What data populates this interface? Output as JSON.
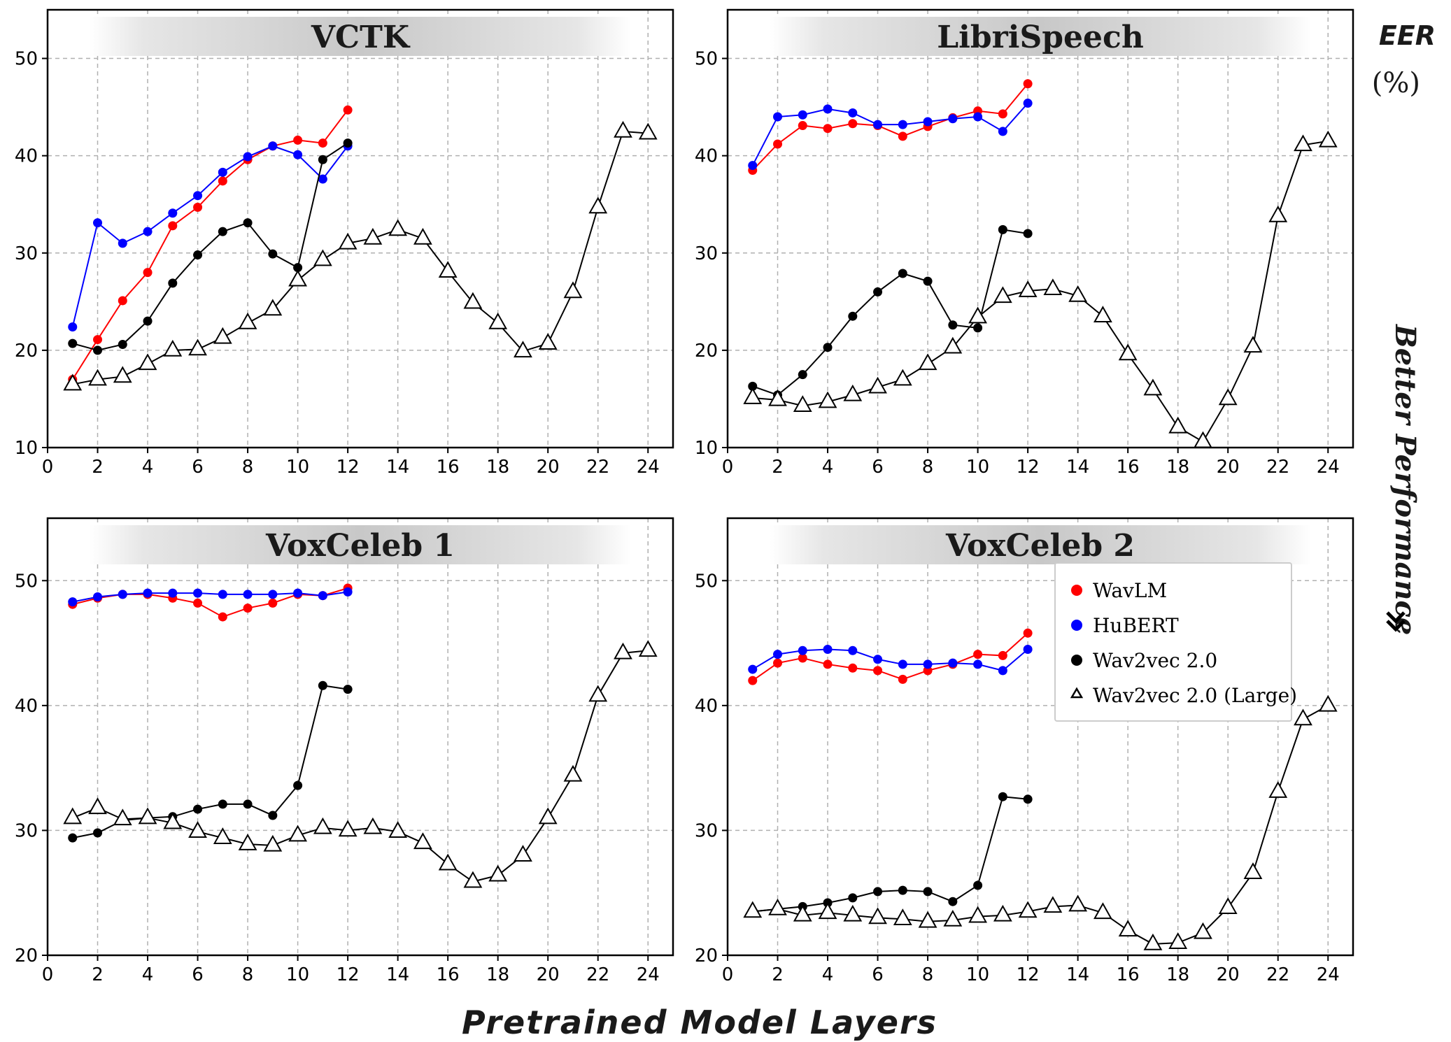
{
  "figure": {
    "xlabel": "Pretrained Model Layers",
    "side_label": "EER",
    "side_unit": "(%)",
    "arrow_label": "Better Performance",
    "arrow_icon": "double-chevron-down-icon"
  },
  "legend": {
    "placement": "inside VoxCeleb 2 panel, upper-right",
    "entries": [
      {
        "label": "WavLM",
        "color": "#ff0000",
        "marker": "circle"
      },
      {
        "label": "HuBERT",
        "color": "#0000ff",
        "marker": "circle"
      },
      {
        "label": "Wav2vec 2.0",
        "color": "#000000",
        "marker": "circle"
      },
      {
        "label": "Wav2vec 2.0 (Large)",
        "color": "#000000",
        "marker": "open-triangle"
      }
    ]
  },
  "chart_data": [
    {
      "type": "line",
      "title": "VCTK",
      "xlim": [
        0,
        25
      ],
      "ylim": [
        10,
        55
      ],
      "xticks": [
        0,
        2,
        4,
        6,
        8,
        10,
        12,
        14,
        16,
        18,
        20,
        22,
        24
      ],
      "yticks": [
        10,
        20,
        30,
        40,
        50
      ],
      "grid": true,
      "series": [
        {
          "name": "WavLM",
          "color": "#ff0000",
          "marker": "circle",
          "x": [
            1,
            2,
            3,
            4,
            5,
            6,
            7,
            8,
            9,
            10,
            11,
            12
          ],
          "values": [
            17.0,
            21.1,
            25.1,
            28.0,
            32.8,
            34.7,
            37.4,
            39.6,
            41.0,
            41.6,
            41.3,
            44.7
          ]
        },
        {
          "name": "HuBERT",
          "color": "#0000ff",
          "marker": "circle",
          "x": [
            1,
            2,
            3,
            4,
            5,
            6,
            7,
            8,
            9,
            10,
            11,
            12
          ],
          "values": [
            22.4,
            33.1,
            31.0,
            32.2,
            34.1,
            35.9,
            38.3,
            39.9,
            41.0,
            40.1,
            37.6,
            41.0
          ]
        },
        {
          "name": "Wav2vec 2.0",
          "color": "#000000",
          "marker": "circle",
          "x": [
            1,
            2,
            3,
            4,
            5,
            6,
            7,
            8,
            9,
            10,
            11,
            12
          ],
          "values": [
            20.7,
            20.0,
            20.6,
            23.0,
            26.9,
            29.8,
            32.2,
            33.1,
            29.9,
            28.5,
            39.6,
            41.3
          ]
        },
        {
          "name": "Wav2vec 2.0 (Large)",
          "color": "#000000",
          "marker": "triangle",
          "x": [
            1,
            2,
            3,
            4,
            5,
            6,
            7,
            8,
            9,
            10,
            11,
            12,
            13,
            14,
            15,
            16,
            17,
            18,
            19,
            20,
            21,
            22,
            23,
            24
          ],
          "values": [
            16.5,
            17.0,
            17.3,
            18.6,
            20.0,
            20.1,
            21.3,
            22.8,
            24.2,
            27.2,
            29.3,
            31.0,
            31.5,
            32.4,
            31.5,
            28.1,
            24.9,
            22.8,
            19.9,
            20.7,
            26.0,
            34.7,
            42.5,
            42.3
          ]
        }
      ]
    },
    {
      "type": "line",
      "title": "LibriSpeech",
      "xlim": [
        0,
        25
      ],
      "ylim": [
        10,
        55
      ],
      "xticks": [
        0,
        2,
        4,
        6,
        8,
        10,
        12,
        14,
        16,
        18,
        20,
        22,
        24
      ],
      "yticks": [
        10,
        20,
        30,
        40,
        50
      ],
      "grid": true,
      "series": [
        {
          "name": "WavLM",
          "color": "#ff0000",
          "marker": "circle",
          "x": [
            1,
            2,
            3,
            4,
            5,
            6,
            7,
            8,
            9,
            10,
            11,
            12
          ],
          "values": [
            38.5,
            41.2,
            43.1,
            42.8,
            43.3,
            43.1,
            42.0,
            43.0,
            43.9,
            44.6,
            44.3,
            47.4
          ]
        },
        {
          "name": "HuBERT",
          "color": "#0000ff",
          "marker": "circle",
          "x": [
            1,
            2,
            3,
            4,
            5,
            6,
            7,
            8,
            9,
            10,
            11,
            12
          ],
          "values": [
            39.0,
            44.0,
            44.2,
            44.8,
            44.4,
            43.2,
            43.2,
            43.5,
            43.8,
            44.0,
            42.5,
            45.4
          ]
        },
        {
          "name": "Wav2vec 2.0",
          "color": "#000000",
          "marker": "circle",
          "x": [
            1,
            2,
            3,
            4,
            5,
            6,
            7,
            8,
            9,
            10,
            11,
            12
          ],
          "values": [
            16.3,
            15.4,
            17.5,
            20.3,
            23.5,
            26.0,
            27.9,
            27.1,
            22.6,
            22.3,
            32.4,
            32.0
          ]
        },
        {
          "name": "Wav2vec 2.0 (Large)",
          "color": "#000000",
          "marker": "triangle",
          "x": [
            1,
            2,
            3,
            4,
            5,
            6,
            7,
            8,
            9,
            10,
            11,
            12,
            13,
            14,
            15,
            16,
            17,
            18,
            19,
            20,
            21,
            22,
            23,
            24
          ],
          "values": [
            15.1,
            14.9,
            14.3,
            14.7,
            15.4,
            16.2,
            17.0,
            18.6,
            20.3,
            23.4,
            25.5,
            26.1,
            26.3,
            25.6,
            23.5,
            19.6,
            16.0,
            12.1,
            10.6,
            15.0,
            20.4,
            33.8,
            41.1,
            41.5
          ]
        }
      ]
    },
    {
      "type": "line",
      "title": "VoxCeleb 1",
      "xlim": [
        0,
        25
      ],
      "ylim": [
        20,
        55
      ],
      "xticks": [
        0,
        2,
        4,
        6,
        8,
        10,
        12,
        14,
        16,
        18,
        20,
        22,
        24
      ],
      "yticks": [
        20,
        30,
        40,
        50
      ],
      "grid": true,
      "series": [
        {
          "name": "WavLM",
          "color": "#ff0000",
          "marker": "circle",
          "x": [
            1,
            2,
            3,
            4,
            5,
            6,
            7,
            8,
            9,
            10,
            11,
            12
          ],
          "values": [
            48.1,
            48.6,
            48.9,
            48.9,
            48.6,
            48.2,
            47.1,
            47.8,
            48.2,
            48.9,
            48.8,
            49.4
          ]
        },
        {
          "name": "HuBERT",
          "color": "#0000ff",
          "marker": "circle",
          "x": [
            1,
            2,
            3,
            4,
            5,
            6,
            7,
            8,
            9,
            10,
            11,
            12
          ],
          "values": [
            48.3,
            48.7,
            48.9,
            49.0,
            49.0,
            49.0,
            48.9,
            48.9,
            48.9,
            49.0,
            48.8,
            49.1
          ]
        },
        {
          "name": "Wav2vec 2.0",
          "color": "#000000",
          "marker": "circle",
          "x": [
            1,
            2,
            3,
            4,
            5,
            6,
            7,
            8,
            9,
            10,
            11,
            12
          ],
          "values": [
            29.4,
            29.8,
            30.8,
            31.0,
            31.1,
            31.7,
            32.1,
            32.1,
            31.2,
            33.6,
            41.6,
            41.3
          ]
        },
        {
          "name": "Wav2vec 2.0 (Large)",
          "color": "#000000",
          "marker": "triangle",
          "x": [
            1,
            2,
            3,
            4,
            5,
            6,
            7,
            8,
            9,
            10,
            11,
            12,
            13,
            14,
            15,
            16,
            17,
            18,
            19,
            20,
            21,
            22,
            23,
            24
          ],
          "values": [
            31.0,
            31.8,
            30.9,
            31.0,
            30.6,
            29.9,
            29.4,
            28.9,
            28.8,
            29.6,
            30.2,
            30.0,
            30.2,
            29.9,
            29.0,
            27.3,
            25.9,
            26.4,
            28.0,
            31.0,
            34.4,
            40.8,
            44.2,
            44.4
          ]
        }
      ]
    },
    {
      "type": "line",
      "title": "VoxCeleb 2",
      "xlim": [
        0,
        25
      ],
      "ylim": [
        20,
        55
      ],
      "xticks": [
        0,
        2,
        4,
        6,
        8,
        10,
        12,
        14,
        16,
        18,
        20,
        22,
        24
      ],
      "yticks": [
        20,
        30,
        40,
        50
      ],
      "grid": true,
      "series": [
        {
          "name": "WavLM",
          "color": "#ff0000",
          "marker": "circle",
          "x": [
            1,
            2,
            3,
            4,
            5,
            6,
            7,
            8,
            9,
            10,
            11,
            12
          ],
          "values": [
            42.0,
            43.4,
            43.8,
            43.3,
            43.0,
            42.8,
            42.1,
            42.8,
            43.3,
            44.1,
            44.0,
            45.8
          ]
        },
        {
          "name": "HuBERT",
          "color": "#0000ff",
          "marker": "circle",
          "x": [
            1,
            2,
            3,
            4,
            5,
            6,
            7,
            8,
            9,
            10,
            11,
            12
          ],
          "values": [
            42.9,
            44.1,
            44.4,
            44.5,
            44.4,
            43.7,
            43.3,
            43.3,
            43.4,
            43.3,
            42.8,
            44.5
          ]
        },
        {
          "name": "Wav2vec 2.0",
          "color": "#000000",
          "marker": "circle",
          "x": [
            1,
            2,
            3,
            4,
            5,
            6,
            7,
            8,
            9,
            10,
            11,
            12
          ],
          "values": [
            23.5,
            23.7,
            23.9,
            24.2,
            24.6,
            25.1,
            25.2,
            25.1,
            24.3,
            25.6,
            32.7,
            32.5
          ]
        },
        {
          "name": "Wav2vec 2.0 (Large)",
          "color": "#000000",
          "marker": "triangle",
          "x": [
            1,
            2,
            3,
            4,
            5,
            6,
            7,
            8,
            9,
            10,
            11,
            12,
            13,
            14,
            15,
            16,
            17,
            18,
            19,
            20,
            21,
            22,
            23,
            24
          ],
          "values": [
            23.5,
            23.7,
            23.2,
            23.4,
            23.2,
            23.0,
            22.9,
            22.7,
            22.8,
            23.1,
            23.2,
            23.5,
            23.9,
            24.0,
            23.4,
            22.0,
            20.9,
            21.0,
            21.8,
            23.8,
            26.6,
            33.1,
            38.9,
            40.0
          ]
        }
      ]
    }
  ]
}
